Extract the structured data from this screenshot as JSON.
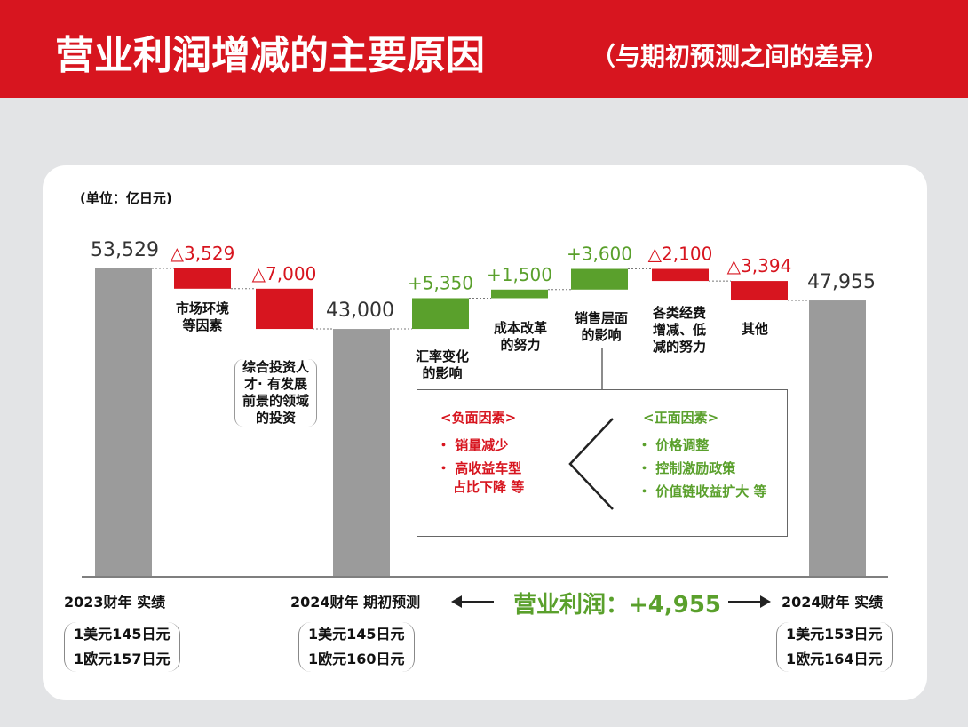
{
  "header": {
    "title": "营业利润增减的主要原因",
    "subtitle": "（与期初预测之间的差异）"
  },
  "unit_label": "(单位：亿日元)",
  "chart_data": {
    "type": "bar",
    "title": "营业利润增减的主要原因",
    "subtitle": "（与期初预测之间的差异）",
    "ylabel": "亿日元",
    "ylim": [
      0,
      53529
    ],
    "totals": [
      {
        "name": "2023财年 实绩",
        "value": 53529,
        "label": "53,529"
      },
      {
        "name": "2024财年 期初预测",
        "value": 43000,
        "label": "43,000"
      },
      {
        "name": "2024财年 实绩",
        "value": 47955,
        "label": "47,955"
      }
    ],
    "changes": [
      {
        "name": "市场环境等因素",
        "value": -3529,
        "label": "△3,529"
      },
      {
        "name": "综合投资人才·有发展前景的领域的投资",
        "value": -7000,
        "label": "△7,000"
      },
      {
        "name": "汇率变化的影响",
        "value": 5350,
        "label": "+5,350"
      },
      {
        "name": "成本改革的努力",
        "value": 1500,
        "label": "+1,500"
      },
      {
        "name": "销售层面的影响",
        "value": 3600,
        "label": "+3,600"
      },
      {
        "name": "各类经费增减、低减的努力",
        "value": -2100,
        "label": "△2,100"
      },
      {
        "name": "其他",
        "value": -3394,
        "label": "△3,394"
      }
    ],
    "category_labels": {
      "market": [
        "市场环境",
        "等因素"
      ],
      "invest": [
        "综合投资人",
        "才· 有发展",
        "前景的领域",
        "的投资"
      ],
      "fx": [
        "汇率变化",
        "的影响"
      ],
      "cost": [
        "成本改革",
        "的努力"
      ],
      "sales": [
        "销售层面",
        "的影响"
      ],
      "expense": [
        "各类经费",
        "增减、低",
        "减的努力"
      ],
      "other": [
        "其他"
      ]
    },
    "colors": {
      "total": "#9b9b9b",
      "negative": "#d7151f",
      "positive": "#5aa02c"
    }
  },
  "factors": {
    "negative_title": "<负面因素>",
    "negative_items": [
      "・ 销量减少",
      "・ 高收益车型",
      "占比下降 等"
    ],
    "positive_title": "<正面因素>",
    "positive_items": [
      "・ 价格调整",
      "・ 控制激励政策",
      "・ 价值链收益扩大 等"
    ]
  },
  "bottom": {
    "fy2023": "2023财年 实绩",
    "fy2024_forecast": "2024财年 期初预测",
    "fy2024_actual": "2024财年 实绩",
    "fy2023_rates": [
      "1美元145日元",
      "1欧元157日元"
    ],
    "forecast_rates": [
      "1美元145日元",
      "1欧元160日元"
    ],
    "actual_rates": [
      "1美元153日元",
      "1欧元164日元"
    ],
    "operating_profit": "营业利润：+4,955"
  }
}
